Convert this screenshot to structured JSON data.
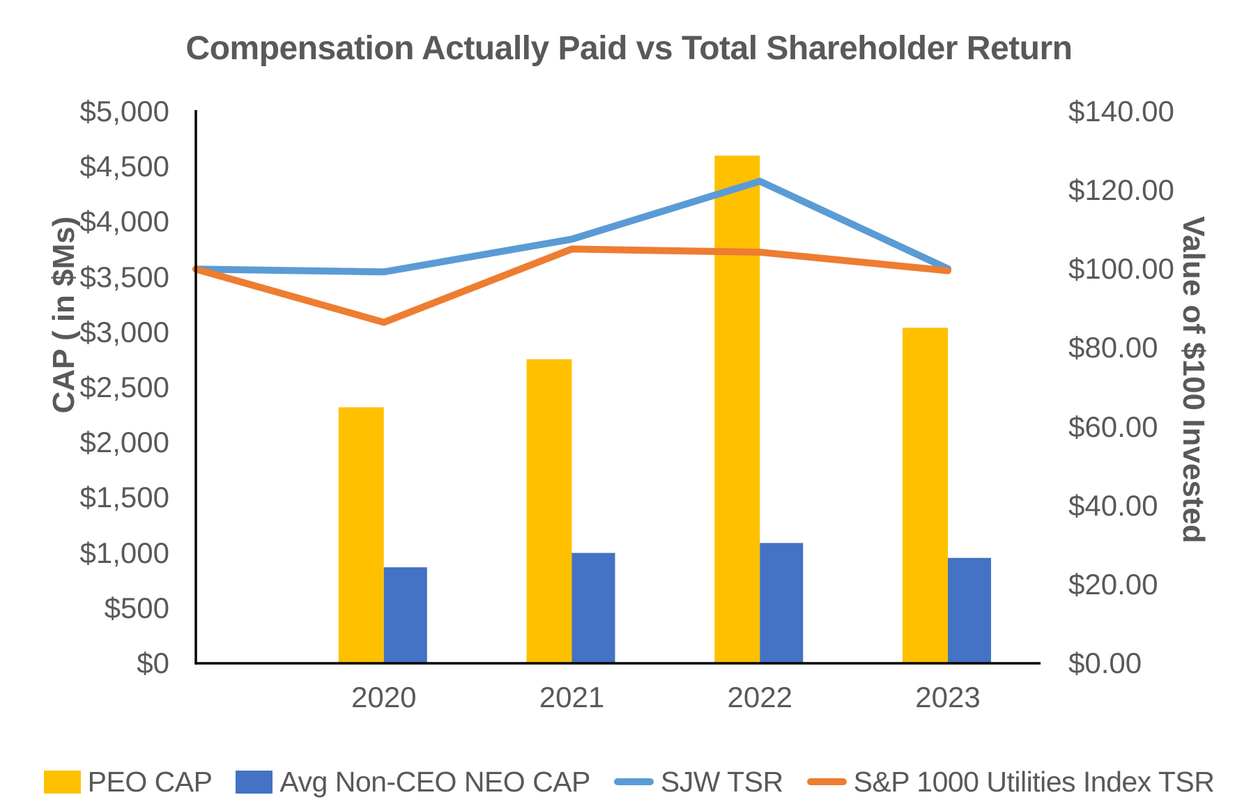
{
  "title": "Compensation Actually Paid vs Total Shareholder Return",
  "colors": {
    "text": "#595959",
    "axis_line": "#000000",
    "peo_cap": "#FFC000",
    "neo_cap": "#4472C4",
    "sjw_tsr": "#5B9BD5",
    "index_tsr": "#ED7D31",
    "background": "#FFFFFF"
  },
  "chart_data": {
    "type": "combo-bar-line",
    "title": "Compensation Actually Paid vs Total Shareholder Return",
    "categories": [
      "2020",
      "2021",
      "2022",
      "2023"
    ],
    "bar_series": [
      {
        "name": "PEO CAP",
        "axis": "left",
        "color": "#FFC000",
        "values": [
          2320,
          2755,
          4600,
          3040
        ]
      },
      {
        "name": "Avg Non-CEO NEO CAP",
        "axis": "left",
        "color": "#4472C4",
        "values": [
          870,
          1000,
          1090,
          955
        ]
      }
    ],
    "line_series": [
      {
        "name": "SJW TSR",
        "axis": "right",
        "color": "#5B9BD5",
        "baseline": 100,
        "values": [
          99.3,
          107.6,
          122.3,
          100.1
        ]
      },
      {
        "name": "S&P 1000 Utilities Index TSR",
        "axis": "right",
        "color": "#ED7D31",
        "baseline": 100,
        "values": [
          86.5,
          105.1,
          104.3,
          99.6
        ]
      }
    ],
    "left_axis": {
      "title": "CAP ( in $Ms)",
      "min": 0,
      "max": 5000,
      "step": 500,
      "tick_labels": [
        "$5,000",
        "$4,500",
        "$4,000",
        "$3,500",
        "$3,000",
        "$2,500",
        "$2,000",
        "$1,500",
        "$1,000",
        "$500",
        "$0"
      ]
    },
    "right_axis": {
      "title": "Value of $100 Invested",
      "min": 0,
      "max": 140,
      "step": 20,
      "tick_labels": [
        "$140.00",
        "$120.00",
        "$100.00",
        "$80.00",
        "$60.00",
        "$40.00",
        "$20.00",
        "$0.00"
      ]
    },
    "x_axis": {
      "tick_labels": [
        "2020",
        "2021",
        "2022",
        "2023"
      ]
    },
    "legend_position": "bottom",
    "grid": false
  }
}
